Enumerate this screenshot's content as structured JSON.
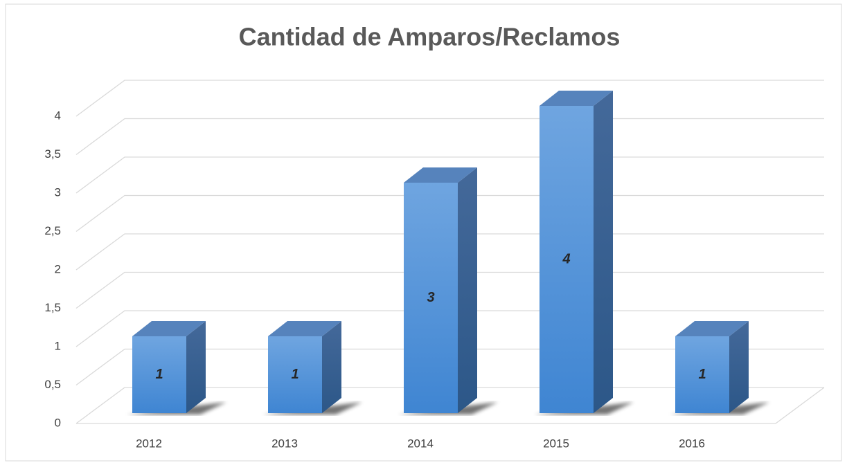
{
  "chart_data": {
    "type": "bar3d",
    "title": "Cantidad de Amparos/Reclamos",
    "categories": [
      "2012",
      "2013",
      "2014",
      "2015",
      "2016"
    ],
    "values": [
      1,
      1,
      3,
      4,
      1
    ],
    "color": "#5b9bd5",
    "ylim": [
      0,
      4
    ],
    "yticks": [
      0,
      {
        "value": 0.5,
        "label": "0,5"
      },
      1,
      {
        "value": 1.5,
        "label": "1,5"
      },
      2,
      {
        "value": 2.5,
        "label": "2,5"
      },
      3,
      {
        "value": 3.5,
        "label": "3,5"
      },
      4
    ],
    "grid": true
  }
}
